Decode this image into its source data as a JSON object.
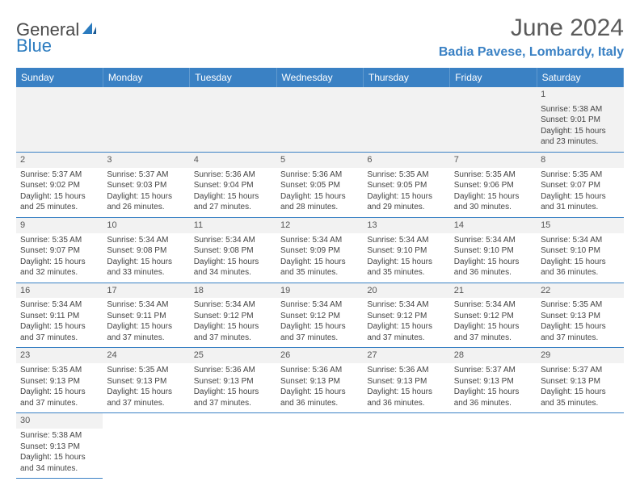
{
  "brand": {
    "part1": "General",
    "part2": "Blue"
  },
  "title": "June 2024",
  "location": "Badia Pavese, Lombardy, Italy",
  "colors": {
    "header_bg": "#3a81c4",
    "header_text": "#ffffff",
    "brand_blue": "#2b7bbf",
    "daynum_bg": "#f2f2f2",
    "border": "#3a81c4"
  },
  "fonts": {
    "title_size": 30,
    "location_size": 16,
    "dayhead_size": 12,
    "cell_size": 10
  },
  "day_headers": [
    "Sunday",
    "Monday",
    "Tuesday",
    "Wednesday",
    "Thursday",
    "Friday",
    "Saturday"
  ],
  "weeks": [
    [
      null,
      null,
      null,
      null,
      null,
      null,
      {
        "n": "1",
        "sr": "Sunrise: 5:38 AM",
        "ss": "Sunset: 9:01 PM",
        "dl": "Daylight: 15 hours and 23 minutes."
      }
    ],
    [
      {
        "n": "2",
        "sr": "Sunrise: 5:37 AM",
        "ss": "Sunset: 9:02 PM",
        "dl": "Daylight: 15 hours and 25 minutes."
      },
      {
        "n": "3",
        "sr": "Sunrise: 5:37 AM",
        "ss": "Sunset: 9:03 PM",
        "dl": "Daylight: 15 hours and 26 minutes."
      },
      {
        "n": "4",
        "sr": "Sunrise: 5:36 AM",
        "ss": "Sunset: 9:04 PM",
        "dl": "Daylight: 15 hours and 27 minutes."
      },
      {
        "n": "5",
        "sr": "Sunrise: 5:36 AM",
        "ss": "Sunset: 9:05 PM",
        "dl": "Daylight: 15 hours and 28 minutes."
      },
      {
        "n": "6",
        "sr": "Sunrise: 5:35 AM",
        "ss": "Sunset: 9:05 PM",
        "dl": "Daylight: 15 hours and 29 minutes."
      },
      {
        "n": "7",
        "sr": "Sunrise: 5:35 AM",
        "ss": "Sunset: 9:06 PM",
        "dl": "Daylight: 15 hours and 30 minutes."
      },
      {
        "n": "8",
        "sr": "Sunrise: 5:35 AM",
        "ss": "Sunset: 9:07 PM",
        "dl": "Daylight: 15 hours and 31 minutes."
      }
    ],
    [
      {
        "n": "9",
        "sr": "Sunrise: 5:35 AM",
        "ss": "Sunset: 9:07 PM",
        "dl": "Daylight: 15 hours and 32 minutes."
      },
      {
        "n": "10",
        "sr": "Sunrise: 5:34 AM",
        "ss": "Sunset: 9:08 PM",
        "dl": "Daylight: 15 hours and 33 minutes."
      },
      {
        "n": "11",
        "sr": "Sunrise: 5:34 AM",
        "ss": "Sunset: 9:08 PM",
        "dl": "Daylight: 15 hours and 34 minutes."
      },
      {
        "n": "12",
        "sr": "Sunrise: 5:34 AM",
        "ss": "Sunset: 9:09 PM",
        "dl": "Daylight: 15 hours and 35 minutes."
      },
      {
        "n": "13",
        "sr": "Sunrise: 5:34 AM",
        "ss": "Sunset: 9:10 PM",
        "dl": "Daylight: 15 hours and 35 minutes."
      },
      {
        "n": "14",
        "sr": "Sunrise: 5:34 AM",
        "ss": "Sunset: 9:10 PM",
        "dl": "Daylight: 15 hours and 36 minutes."
      },
      {
        "n": "15",
        "sr": "Sunrise: 5:34 AM",
        "ss": "Sunset: 9:10 PM",
        "dl": "Daylight: 15 hours and 36 minutes."
      }
    ],
    [
      {
        "n": "16",
        "sr": "Sunrise: 5:34 AM",
        "ss": "Sunset: 9:11 PM",
        "dl": "Daylight: 15 hours and 37 minutes."
      },
      {
        "n": "17",
        "sr": "Sunrise: 5:34 AM",
        "ss": "Sunset: 9:11 PM",
        "dl": "Daylight: 15 hours and 37 minutes."
      },
      {
        "n": "18",
        "sr": "Sunrise: 5:34 AM",
        "ss": "Sunset: 9:12 PM",
        "dl": "Daylight: 15 hours and 37 minutes."
      },
      {
        "n": "19",
        "sr": "Sunrise: 5:34 AM",
        "ss": "Sunset: 9:12 PM",
        "dl": "Daylight: 15 hours and 37 minutes."
      },
      {
        "n": "20",
        "sr": "Sunrise: 5:34 AM",
        "ss": "Sunset: 9:12 PM",
        "dl": "Daylight: 15 hours and 37 minutes."
      },
      {
        "n": "21",
        "sr": "Sunrise: 5:34 AM",
        "ss": "Sunset: 9:12 PM",
        "dl": "Daylight: 15 hours and 37 minutes."
      },
      {
        "n": "22",
        "sr": "Sunrise: 5:35 AM",
        "ss": "Sunset: 9:13 PM",
        "dl": "Daylight: 15 hours and 37 minutes."
      }
    ],
    [
      {
        "n": "23",
        "sr": "Sunrise: 5:35 AM",
        "ss": "Sunset: 9:13 PM",
        "dl": "Daylight: 15 hours and 37 minutes."
      },
      {
        "n": "24",
        "sr": "Sunrise: 5:35 AM",
        "ss": "Sunset: 9:13 PM",
        "dl": "Daylight: 15 hours and 37 minutes."
      },
      {
        "n": "25",
        "sr": "Sunrise: 5:36 AM",
        "ss": "Sunset: 9:13 PM",
        "dl": "Daylight: 15 hours and 37 minutes."
      },
      {
        "n": "26",
        "sr": "Sunrise: 5:36 AM",
        "ss": "Sunset: 9:13 PM",
        "dl": "Daylight: 15 hours and 36 minutes."
      },
      {
        "n": "27",
        "sr": "Sunrise: 5:36 AM",
        "ss": "Sunset: 9:13 PM",
        "dl": "Daylight: 15 hours and 36 minutes."
      },
      {
        "n": "28",
        "sr": "Sunrise: 5:37 AM",
        "ss": "Sunset: 9:13 PM",
        "dl": "Daylight: 15 hours and 36 minutes."
      },
      {
        "n": "29",
        "sr": "Sunrise: 5:37 AM",
        "ss": "Sunset: 9:13 PM",
        "dl": "Daylight: 15 hours and 35 minutes."
      }
    ],
    [
      {
        "n": "30",
        "sr": "Sunrise: 5:38 AM",
        "ss": "Sunset: 9:13 PM",
        "dl": "Daylight: 15 hours and 34 minutes."
      },
      null,
      null,
      null,
      null,
      null,
      null
    ]
  ]
}
